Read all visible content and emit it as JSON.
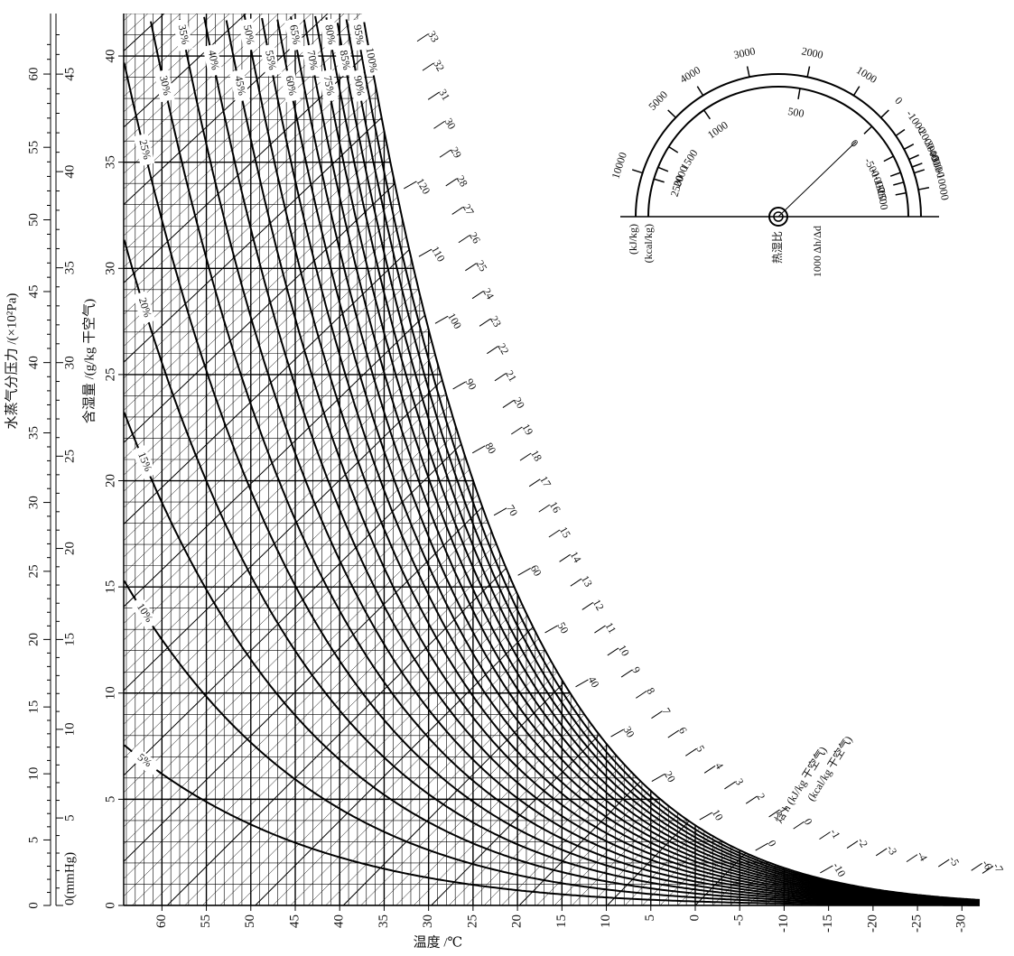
{
  "chart_data": {
    "type": "psychrometric",
    "xlabel": "温度 /℃",
    "xlim": [
      64.3,
      -32
    ],
    "xticks": [
      60,
      55,
      50,
      45,
      40,
      35,
      30,
      25,
      20,
      15,
      10,
      5,
      0,
      -5,
      -10,
      -15,
      -20,
      -25,
      -30
    ],
    "ylabel": "含湿量 /(g/kg 干空气)",
    "ylim": [
      0,
      42
    ],
    "yticks": [
      0,
      5,
      10,
      15,
      20,
      25,
      30,
      35,
      40
    ],
    "y2label": "水蒸气分压力 /(×10²Pa)",
    "y2ticks": [
      0,
      5,
      10,
      15,
      20,
      25,
      30,
      35,
      40,
      45,
      50,
      55,
      60
    ],
    "mmhg_ticks": [
      {
        "value": 0,
        "label": "0(mmHg)"
      },
      5,
      10,
      15,
      20,
      25,
      30,
      35,
      40,
      45
    ],
    "rh_curves": [
      {
        "value": 5,
        "label": "5%"
      },
      {
        "value": 10,
        "label": "10%"
      },
      {
        "value": 15,
        "label": "15%"
      },
      {
        "value": 20,
        "label": "20%"
      },
      {
        "value": 25,
        "label": "25%"
      },
      {
        "value": 30,
        "label": "30%"
      },
      {
        "value": 35,
        "label": "35%"
      },
      {
        "value": 40,
        "label": "40%"
      },
      {
        "value": 45,
        "label": "45%"
      },
      {
        "value": 50,
        "label": "50%"
      },
      {
        "value": 55,
        "label": "55%"
      },
      {
        "value": 60,
        "label": "60%"
      },
      {
        "value": 65,
        "label": "65%"
      },
      {
        "value": 70,
        "label": "70%"
      },
      {
        "value": 75,
        "label": "75%"
      },
      {
        "value": 80,
        "label": "80%"
      },
      {
        "value": 85,
        "label": "85%"
      },
      {
        "value": 90,
        "label": "90%"
      },
      {
        "value": 95,
        "label": "95%"
      },
      {
        "value": 100,
        "label": "100%"
      }
    ],
    "enthalpy_label": "焓 h (kJ/kg 干空气)",
    "enthalpy_label_kcal": "(kcal/kg 干空气)",
    "h_kj_ticks": [
      -10,
      0,
      10,
      20,
      30,
      40,
      50,
      60,
      70,
      80,
      90,
      100,
      110,
      120
    ],
    "h_kcal_ticks": [
      -7,
      -6,
      -5,
      -4,
      -3,
      -2,
      -1,
      0,
      1,
      2,
      3,
      4,
      5,
      6,
      7,
      8,
      9,
      10,
      11,
      12,
      13,
      14,
      15,
      16,
      17,
      18,
      19,
      20,
      21,
      22,
      23,
      24,
      25,
      26,
      27,
      28,
      29,
      30,
      31,
      32,
      33
    ],
    "ratio_scale": {
      "label": "热湿比",
      "formula": "1000 Δh/Δd",
      "outer_unit": "(kJ/kg)",
      "inner_unit": "(kcal/kg)",
      "outer_ticks": [
        10000,
        5000,
        4000,
        3000,
        2000,
        1000,
        0,
        -1000,
        -2000,
        -3000,
        -4000,
        -5000,
        -10000
      ],
      "inner_ticks": [
        2500,
        2000,
        1500,
        1000,
        500,
        0,
        -500,
        -1000,
        -1500,
        -2500
      ]
    }
  }
}
